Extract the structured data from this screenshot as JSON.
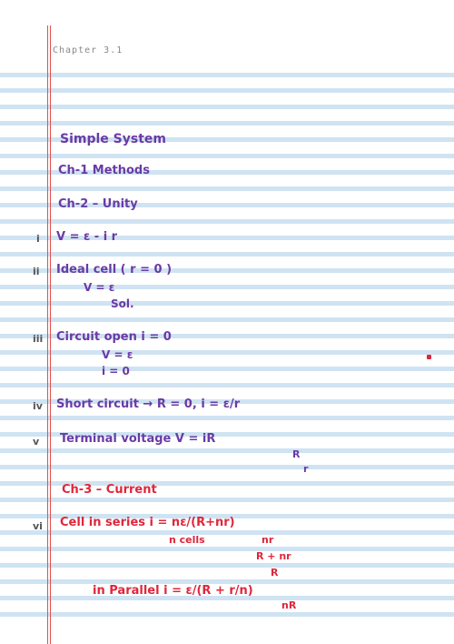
{
  "header": {
    "label": "Chapter 3.1"
  },
  "colors": {
    "rule": "#cfe3f2",
    "margin": "#e05050",
    "ink_purple": "#6a3aa6",
    "ink_red": "#e0263a"
  },
  "notes": {
    "title": "Simple System",
    "l1": "Ch-1  Methods",
    "l2": "Ch-2 – Unity",
    "l3_mark": "i",
    "l3": "V = ε - i r",
    "l4_mark": "ii",
    "l4a": "Ideal cell ( r = 0 )",
    "l4b": "V = ε",
    "l4c": "Sol.",
    "l5_mark": "iii",
    "l5a": "Circuit open  i = 0",
    "l5b": "V = ε",
    "l5c": "i = 0",
    "l6_mark": "iv",
    "l6": "Short circuit → R = 0, i = ε/r",
    "l7_mark": "v",
    "l7a": "Terminal voltage   V = iR",
    "l7b": "R",
    "l7c": "r",
    "red1": "Ch-3 – Current",
    "red2_mark": "vi",
    "red2a": "Cell in series  i = nε/(R+nr)",
    "red2b": "n cells",
    "red2c": "nr",
    "red2d": "R + nr",
    "red2e": "R",
    "red3": "in Parallel  i = ε/(R + r/n)",
    "red3b": "nR"
  }
}
